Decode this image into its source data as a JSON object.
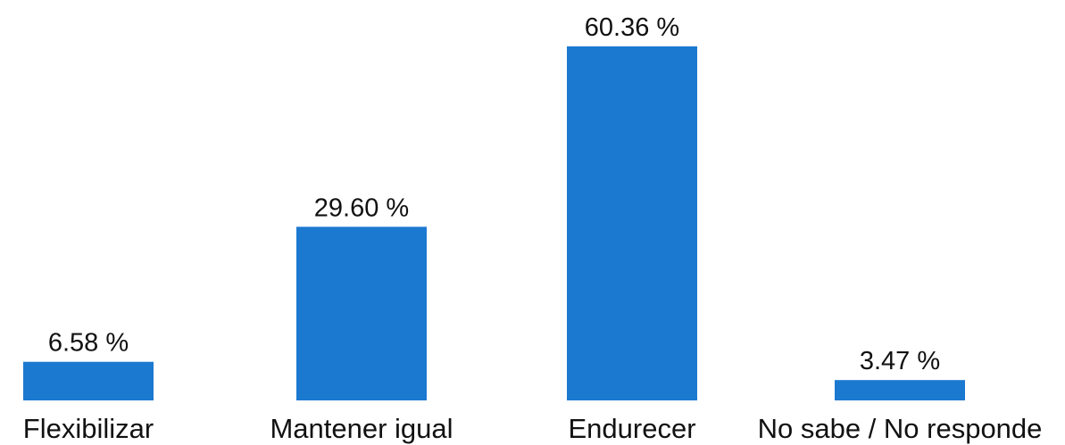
{
  "chart_data": {
    "type": "bar",
    "categories": [
      "Flexibilizar",
      "Mantener igual",
      "Endurecer",
      "No sabe / No responde"
    ],
    "values": [
      6.58,
      29.6,
      60.36,
      3.47
    ],
    "value_labels": [
      "6.58 %",
      "29.60 %",
      "60.36 %",
      "3.47 %"
    ],
    "title": "",
    "xlabel": "",
    "ylabel": "",
    "ylim": [
      0,
      60.36
    ],
    "grid": false,
    "legend": "none",
    "bar_color": "#1c79d0"
  }
}
